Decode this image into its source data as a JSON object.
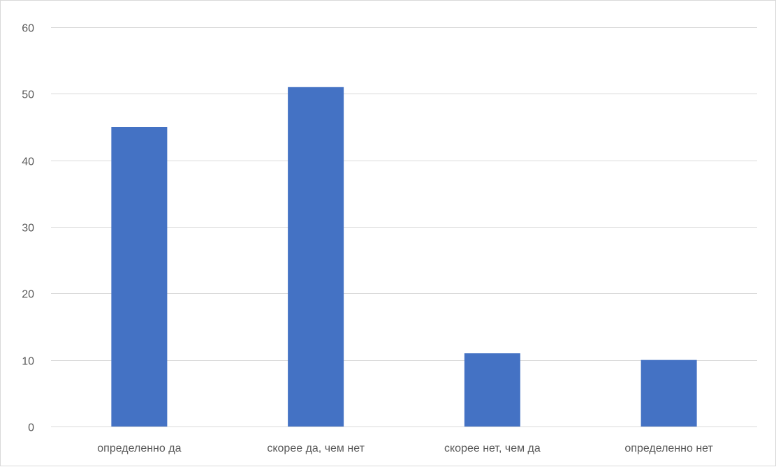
{
  "chart_data": {
    "type": "bar",
    "title": "",
    "xlabel": "",
    "ylabel": "",
    "categories": [
      "определенно да",
      "скорее да, чем нет",
      "скорее нет, чем да",
      "определенно нет"
    ],
    "values": [
      45,
      51,
      11,
      10
    ],
    "ylim": [
      0,
      60
    ],
    "yticks": [
      0,
      10,
      20,
      30,
      40,
      50,
      60
    ],
    "grid": true,
    "legend": "none",
    "colors": {
      "bar": "#4472c4",
      "grid": "#d9d9d9",
      "text": "#595959",
      "border": "#d9d9d9"
    }
  }
}
